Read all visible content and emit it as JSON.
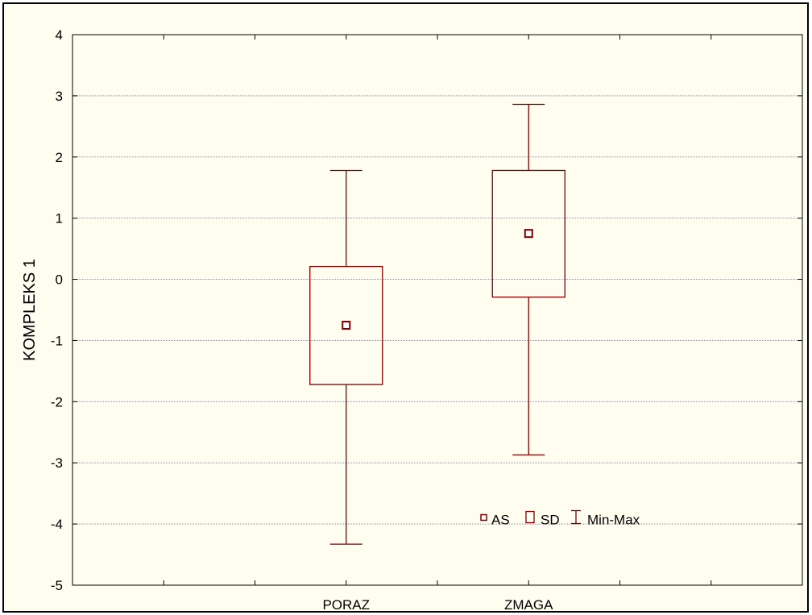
{
  "chart_data": {
    "type": "box",
    "ylabel": "KOMPLEKS 1",
    "ylim": [
      -5,
      4
    ],
    "y_ticks": [
      "4",
      "3",
      "2",
      "1",
      "0",
      "-1",
      "-2",
      "-3",
      "-4",
      "-5"
    ],
    "categories": [
      "PORAZ",
      "ZMAGA"
    ],
    "category_slots": 4,
    "grid": true,
    "series_color": "#800000",
    "boxes": [
      {
        "category": "PORAZ",
        "mean": -0.75,
        "sd_low": -1.72,
        "sd_high": 0.21,
        "min": -4.33,
        "max": 1.78
      },
      {
        "category": "ZMAGA",
        "mean": 0.75,
        "sd_low": -0.29,
        "sd_high": 1.78,
        "min": -2.87,
        "max": 2.86
      }
    ],
    "legend": {
      "position": "bottom-right",
      "items": [
        {
          "symbol": "mean-square-icon",
          "label": "AS"
        },
        {
          "symbol": "sd-box-icon",
          "label": "SD"
        },
        {
          "symbol": "min-max-whisker-icon",
          "label": "Min-Max"
        }
      ]
    }
  }
}
